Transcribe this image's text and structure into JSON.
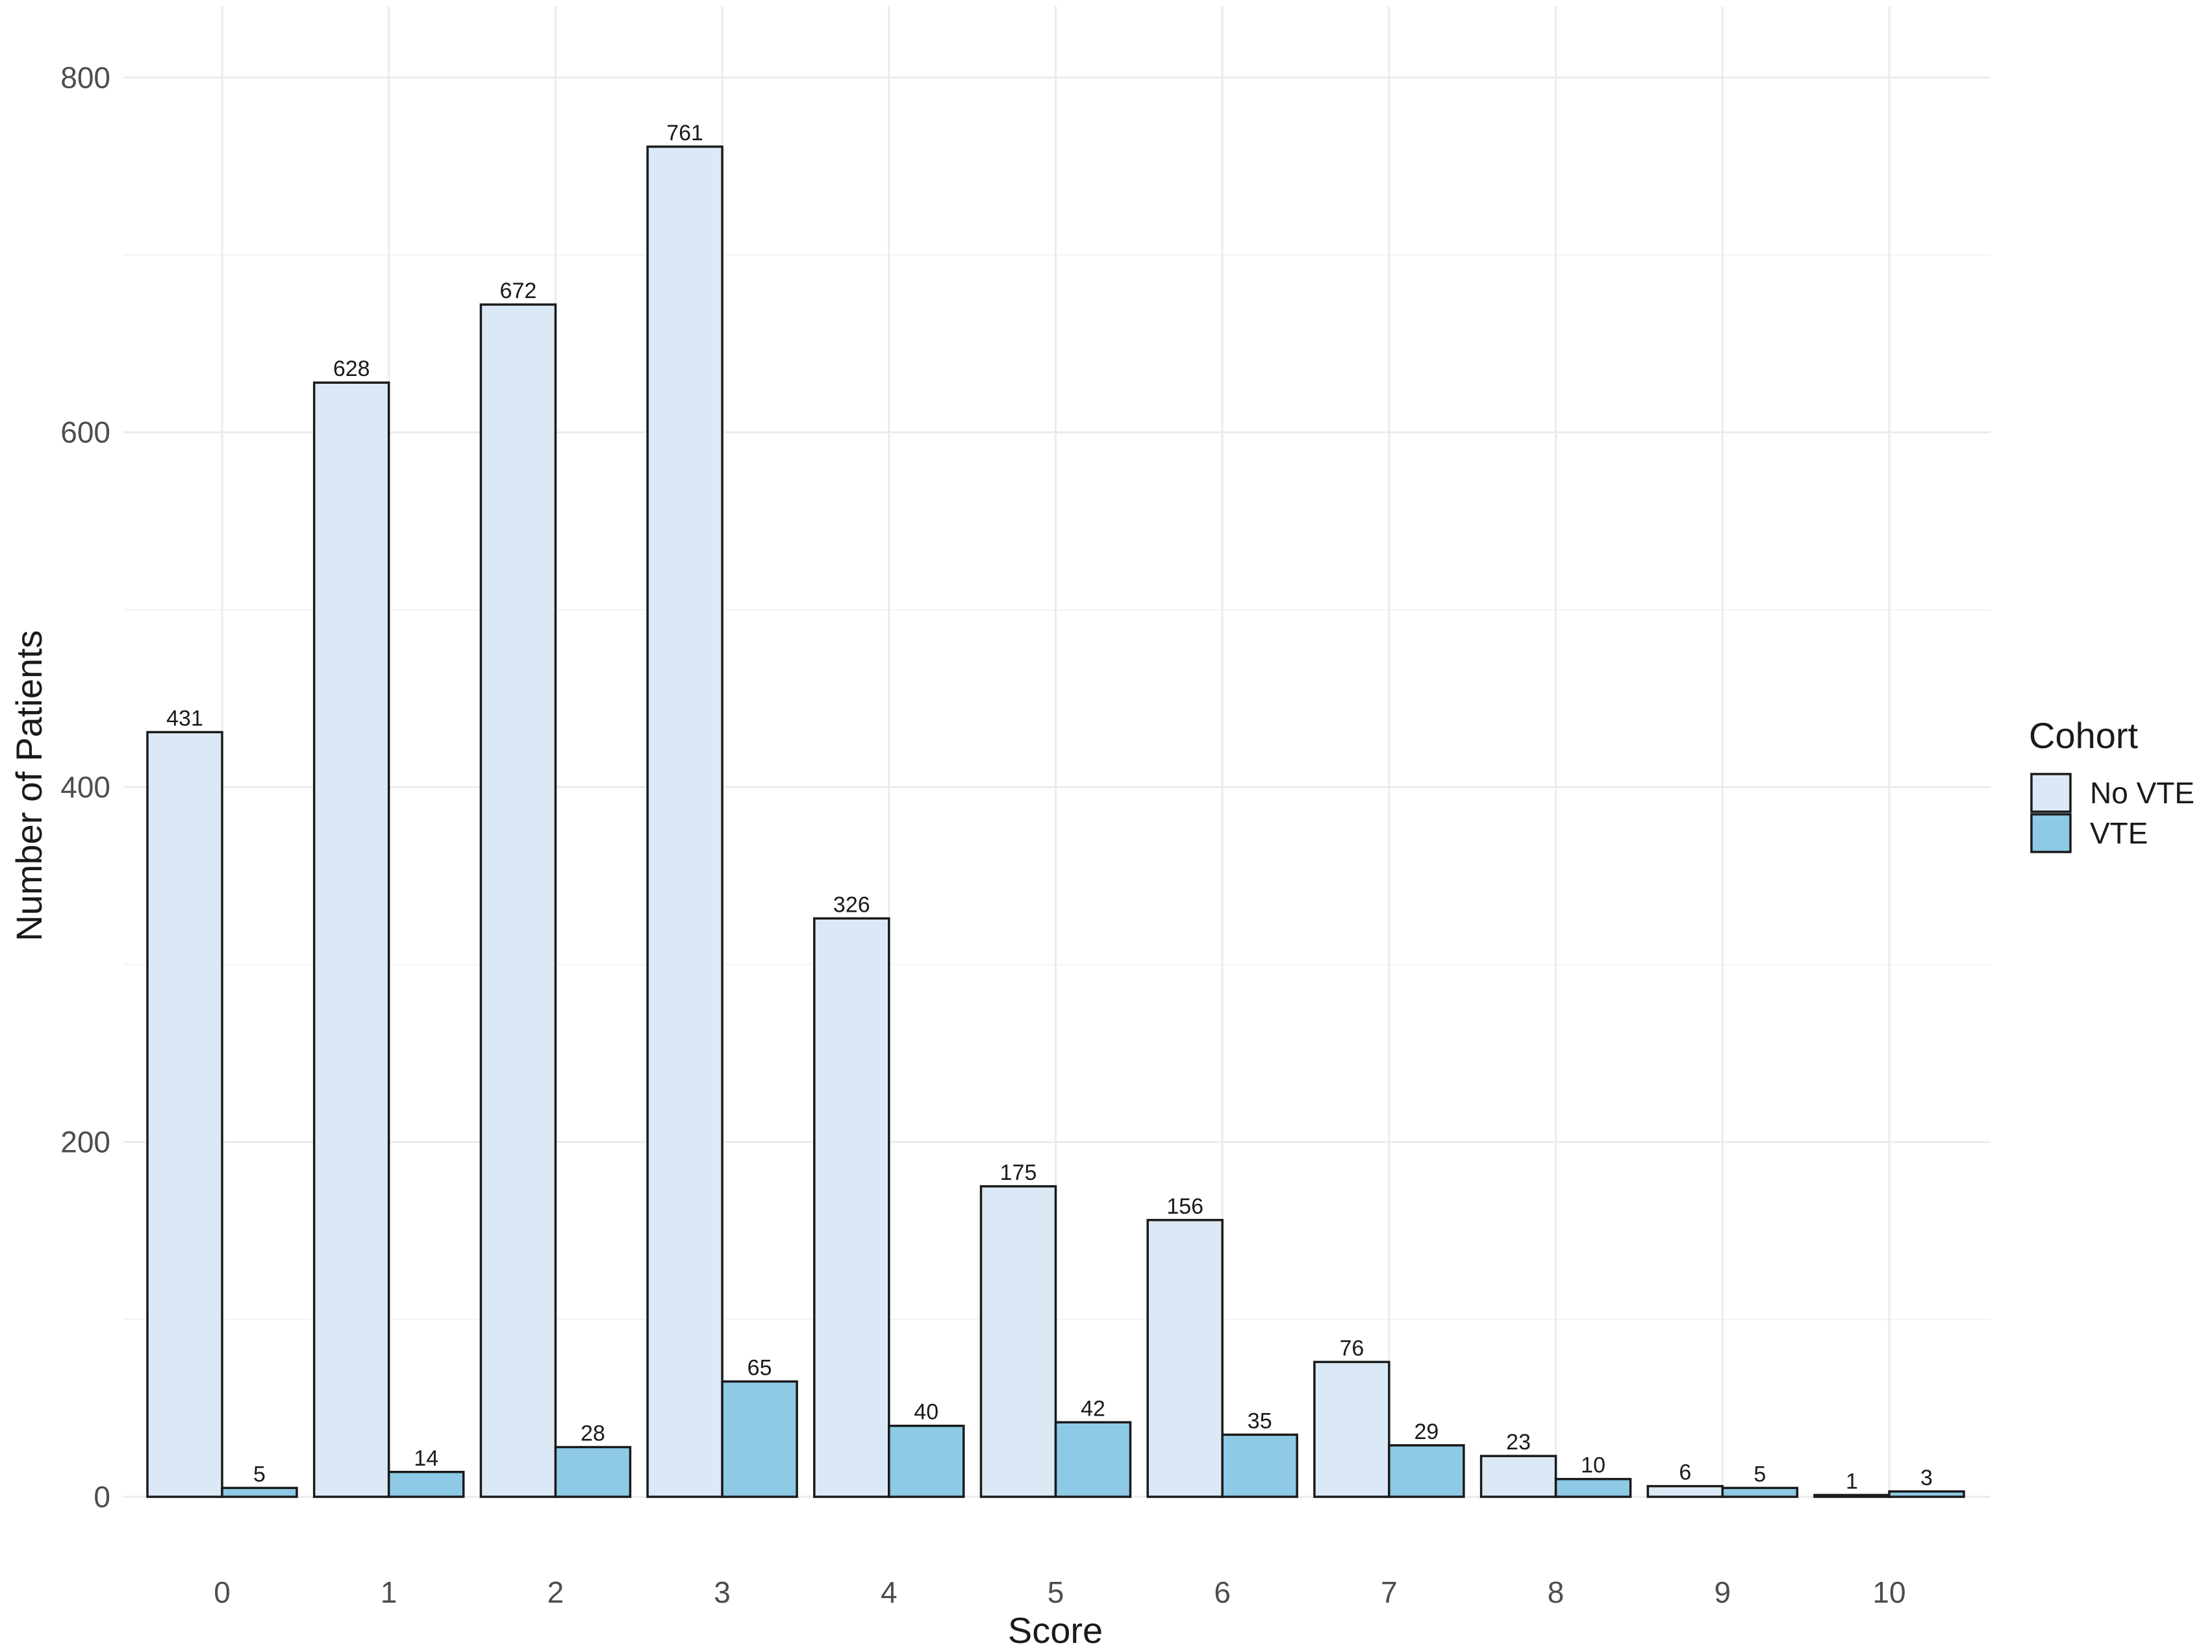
{
  "chart_data": {
    "type": "bar",
    "categories": [
      "0",
      "1",
      "2",
      "3",
      "4",
      "5",
      "6",
      "7",
      "8",
      "9",
      "10"
    ],
    "series": [
      {
        "name": "No VTE",
        "color": "#dbe9f6",
        "values": [
          431,
          628,
          672,
          761,
          326,
          175,
          156,
          76,
          23,
          6,
          1
        ]
      },
      {
        "name": "VTE",
        "color": "#8ecae6",
        "values": [
          5,
          14,
          28,
          65,
          40,
          42,
          35,
          29,
          10,
          5,
          3
        ]
      }
    ],
    "xlabel": "Score",
    "ylabel": "Number of Patients",
    "ylim": [
      0,
      840
    ],
    "yticks": [
      0,
      200,
      400,
      600,
      800
    ],
    "grid": true,
    "legend": {
      "title": "Cohort",
      "position": "right"
    },
    "colors": {
      "bar_outline": "#1a1a1a",
      "grid": "#ebebeb",
      "background": "#ffffff"
    }
  }
}
